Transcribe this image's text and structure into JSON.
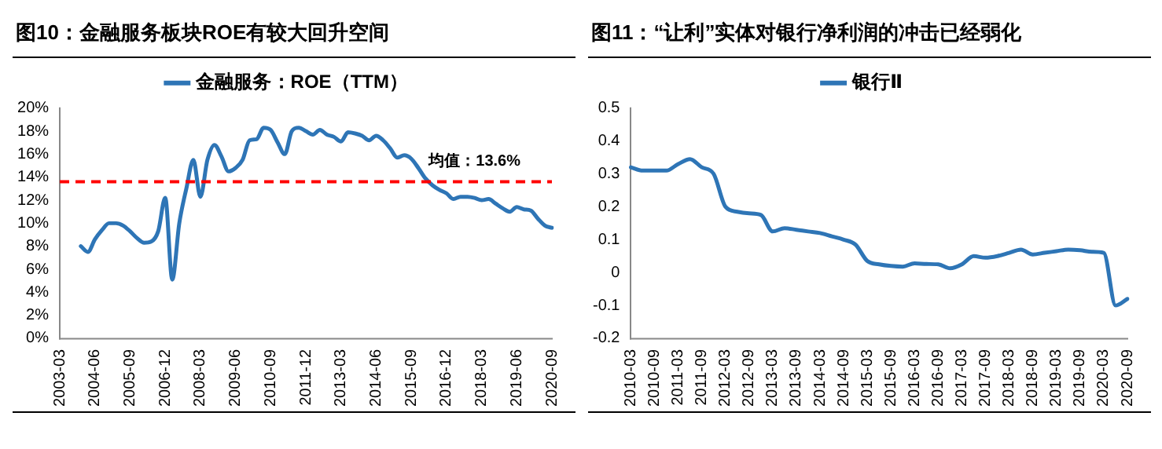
{
  "chart_data": [
    {
      "type": "line",
      "title": "图10：金融服务板块ROE有较大回升空间",
      "categories": [
        "2003-03",
        null,
        null,
        null,
        null,
        "2004-06",
        null,
        null,
        null,
        null,
        "2005-09",
        null,
        null,
        null,
        null,
        "2006-12",
        null,
        null,
        null,
        null,
        "2008-03",
        null,
        null,
        null,
        null,
        "2009-06",
        null,
        null,
        null,
        null,
        "2010-09",
        null,
        null,
        null,
        null,
        "2011-12",
        null,
        null,
        null,
        null,
        "2013-03",
        null,
        null,
        null,
        null,
        "2014-06",
        null,
        null,
        null,
        null,
        "2015-09",
        null,
        null,
        null,
        null,
        "2016-12",
        null,
        null,
        null,
        null,
        "2018-03",
        null,
        null,
        null,
        null,
        "2019-06",
        null,
        null,
        null,
        null,
        "2020-09"
      ],
      "series": [
        {
          "name": "金融服务：ROE（TTM）",
          "color": "#2e75b6",
          "values": [
            null,
            null,
            null,
            8.0,
            7.5,
            8.6,
            9.4,
            10.0,
            10.0,
            9.8,
            9.3,
            8.7,
            8.3,
            8.4,
            9.3,
            12.2,
            5.1,
            10.0,
            13.0,
            15.5,
            12.3,
            15.5,
            16.8,
            15.8,
            14.5,
            14.8,
            15.5,
            17.2,
            17.3,
            18.3,
            18.1,
            17.0,
            16.0,
            18.0,
            18.3,
            18.0,
            17.7,
            18.1,
            17.7,
            17.5,
            17.1,
            17.9,
            17.8,
            17.6,
            17.2,
            17.6,
            17.2,
            16.5,
            15.7,
            15.9,
            15.6,
            14.8,
            13.9,
            13.3,
            12.9,
            12.6,
            12.1,
            12.3,
            12.3,
            12.2,
            12.0,
            12.1,
            11.7,
            11.3,
            11.0,
            11.4,
            11.2,
            11.1,
            10.4,
            9.8,
            9.6
          ]
        }
      ],
      "ylim": [
        0,
        20
      ],
      "yticks": [
        {
          "value": 0,
          "label": "0%"
        },
        {
          "value": 2,
          "label": "2%"
        },
        {
          "value": 4,
          "label": "4%"
        },
        {
          "value": 6,
          "label": "6%"
        },
        {
          "value": 8,
          "label": "8%"
        },
        {
          "value": 10,
          "label": "10%"
        },
        {
          "value": 12,
          "label": "12%"
        },
        {
          "value": 14,
          "label": "14%"
        },
        {
          "value": 16,
          "label": "16%"
        },
        {
          "value": 18,
          "label": "18%"
        },
        {
          "value": 20,
          "label": "20%"
        }
      ],
      "ref_lines": [
        {
          "axis": "y",
          "value": 13.6,
          "label": "均值：13.6%",
          "color": "#ff0000",
          "line_style": "dashed"
        }
      ],
      "legend": "top",
      "marker": "none",
      "line_style": "solid"
    },
    {
      "type": "line",
      "title": "图11：“让利”实体对银行净利润的冲击已经弱化",
      "categories": [
        "2010-03",
        null,
        "2010-09",
        null,
        "2011-03",
        null,
        "2011-09",
        null,
        "2012-03",
        null,
        "2012-09",
        null,
        "2013-03",
        null,
        "2013-09",
        null,
        "2014-03",
        null,
        "2014-09",
        null,
        "2015-03",
        null,
        "2015-09",
        null,
        "2016-03",
        null,
        "2016-09",
        null,
        "2017-03",
        null,
        "2017-09",
        null,
        "2018-03",
        null,
        "2018-09",
        null,
        "2019-03",
        null,
        "2019-09",
        null,
        "2020-03",
        null,
        "2020-09"
      ],
      "series": [
        {
          "name": "银行Ⅱ",
          "color": "#2e75b6",
          "values": [
            0.32,
            0.31,
            0.31,
            0.31,
            0.33,
            0.345,
            0.32,
            0.3,
            0.2,
            0.185,
            0.18,
            0.175,
            0.125,
            0.135,
            0.13,
            0.125,
            0.12,
            0.11,
            0.1,
            0.085,
            0.035,
            0.025,
            0.02,
            0.018,
            0.028,
            0.026,
            0.025,
            0.013,
            0.025,
            0.05,
            0.045,
            0.05,
            0.06,
            0.07,
            0.055,
            0.06,
            0.065,
            0.07,
            0.068,
            0.063,
            0.06,
            -0.1,
            -0.08
          ]
        }
      ],
      "ylim": [
        -0.2,
        0.5
      ],
      "yticks": [
        -0.2,
        -0.1,
        0,
        0.1,
        0.2,
        0.3,
        0.4,
        0.5
      ],
      "legend": "top",
      "marker": "none",
      "line_style": "solid"
    }
  ]
}
